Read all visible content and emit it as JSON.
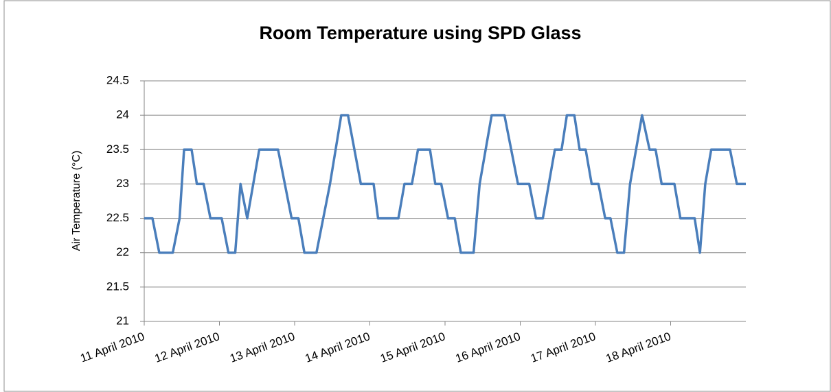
{
  "chart_data": {
    "type": "line",
    "title": "Room Temperature using SPD Glass",
    "y_label": "Air Temperature (°C)",
    "x": [
      0,
      0.11,
      0.2,
      0.38,
      0.47,
      0.53,
      0.63,
      0.7,
      0.79,
      0.88,
      1.03,
      1.12,
      1.21,
      1.28,
      1.37,
      1.53,
      1.78,
      1.96,
      2.05,
      2.13,
      2.29,
      2.47,
      2.62,
      2.71,
      2.88,
      3.05,
      3.11,
      3.38,
      3.46,
      3.56,
      3.64,
      3.8,
      3.87,
      3.95,
      4.04,
      4.13,
      4.21,
      4.38,
      4.46,
      4.62,
      4.79,
      4.97,
      5.12,
      5.21,
      5.3,
      5.38,
      5.46,
      5.55,
      5.62,
      5.72,
      5.79,
      5.87,
      5.95,
      6.04,
      6.13,
      6.2,
      6.29,
      6.38,
      6.46,
      6.62,
      6.72,
      6.8,
      6.88,
      7.05,
      7.13,
      7.32,
      7.39,
      7.46,
      7.54,
      7.79,
      7.88,
      8
    ],
    "series": [
      {
        "color": "#4a7ebb",
        "values": [
          22.5,
          22.5,
          22,
          22,
          22.5,
          23.5,
          23.5,
          23,
          23,
          22.5,
          22.5,
          22,
          22,
          23,
          22.5,
          23.5,
          23.5,
          22.5,
          22.5,
          22,
          22,
          23,
          24,
          24,
          23,
          23,
          22.5,
          22.5,
          23,
          23,
          23.5,
          23.5,
          23,
          23,
          22.5,
          22.5,
          22,
          22,
          23,
          24,
          24,
          23,
          23,
          22.5,
          22.5,
          23,
          23.5,
          23.5,
          24,
          24,
          23.5,
          23.5,
          23,
          23,
          22.5,
          22.5,
          22,
          22,
          23,
          24,
          23.5,
          23.5,
          23,
          23,
          22.5,
          22.5,
          22,
          23,
          23.5,
          23.5,
          23,
          23
        ]
      }
    ],
    "xlim": [
      0,
      8
    ],
    "xticks": [
      {
        "value": 0,
        "label": "11 April 2010"
      },
      {
        "value": 1,
        "label": "12 April 2010"
      },
      {
        "value": 2,
        "label": "13 April 2010"
      },
      {
        "value": 3,
        "label": "14 April 2010"
      },
      {
        "value": 4,
        "label": "15 April 2010"
      },
      {
        "value": 5,
        "label": "16 April 2010"
      },
      {
        "value": 6,
        "label": "17 April 2010"
      },
      {
        "value": 7,
        "label": "18 April 2010"
      }
    ],
    "ylim": [
      21,
      24.5
    ],
    "yticks": [
      21,
      21.5,
      22,
      22.5,
      23,
      23.5,
      24,
      24.5
    ],
    "grid": true
  }
}
